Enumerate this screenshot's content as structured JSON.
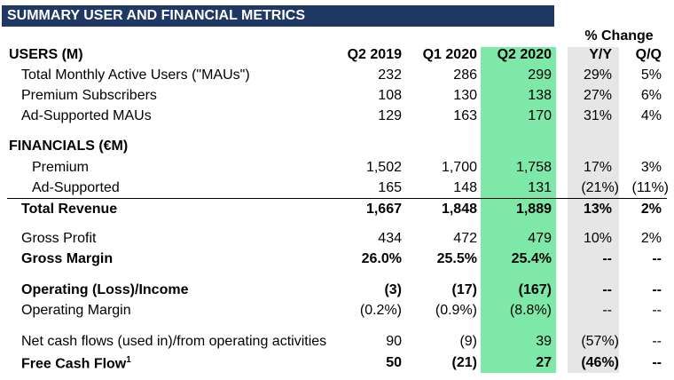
{
  "title": "SUMMARY USER AND FINANCIAL METRICS",
  "pct_change": "% Change",
  "header": {
    "section": "USERS (M)",
    "c1": "Q2 2019",
    "c2": "Q1 2020",
    "c3": "Q2 2020",
    "c4": "Y/Y",
    "c5": "Q/Q"
  },
  "rows": [
    {
      "label": "Total Monthly Active Users (\"MAUs\")",
      "c1": "232",
      "c2": "286",
      "c3": "299",
      "c4": "29%",
      "c5": "5%"
    },
    {
      "label": "Premium Subscribers",
      "c1": "108",
      "c2": "130",
      "c3": "138",
      "c4": "27%",
      "c5": "6%"
    },
    {
      "label": "Ad-Supported MAUs",
      "c1": "129",
      "c2": "163",
      "c3": "170",
      "c4": "31%",
      "c5": "4%"
    },
    {
      "label": "FINANCIALS (€M)"
    },
    {
      "label": "Premium",
      "c1": "1,502",
      "c2": "1,700",
      "c3": "1,758",
      "c4": "17%",
      "c5": "3%"
    },
    {
      "label": "Ad-Supported",
      "c1": "165",
      "c2": "148",
      "c3": "131",
      "c4": "(21%)",
      "c5": "(11%)"
    },
    {
      "label": "Total Revenue",
      "c1": "1,667",
      "c2": "1,848",
      "c3": "1,889",
      "c4": "13%",
      "c5": "2%"
    },
    {
      "label": "Gross Profit",
      "c1": "434",
      "c2": "472",
      "c3": "479",
      "c4": "10%",
      "c5": "2%"
    },
    {
      "label": "Gross Margin",
      "c1": "26.0%",
      "c2": "25.5%",
      "c3": "25.4%",
      "c4": "--",
      "c5": "--"
    },
    {
      "label": "Operating (Loss)/Income",
      "c1": "(3)",
      "c2": "(17)",
      "c3": "(167)",
      "c4": "--",
      "c5": "--"
    },
    {
      "label": "Operating Margin",
      "c1": "(0.2%)",
      "c2": "(0.9%)",
      "c3": "(8.8%)",
      "c4": "--",
      "c5": "--"
    },
    {
      "label": "Net cash flows (used in)/from operating activities",
      "c1": "90",
      "c2": "(9)",
      "c3": "39",
      "c4": "(57%)",
      "c5": "--"
    },
    {
      "label": "Free Cash Flow",
      "sup": "1",
      "c1": "50",
      "c2": "(21)",
      "c3": "27",
      "c4": "(46%)",
      "c5": "--"
    }
  ]
}
